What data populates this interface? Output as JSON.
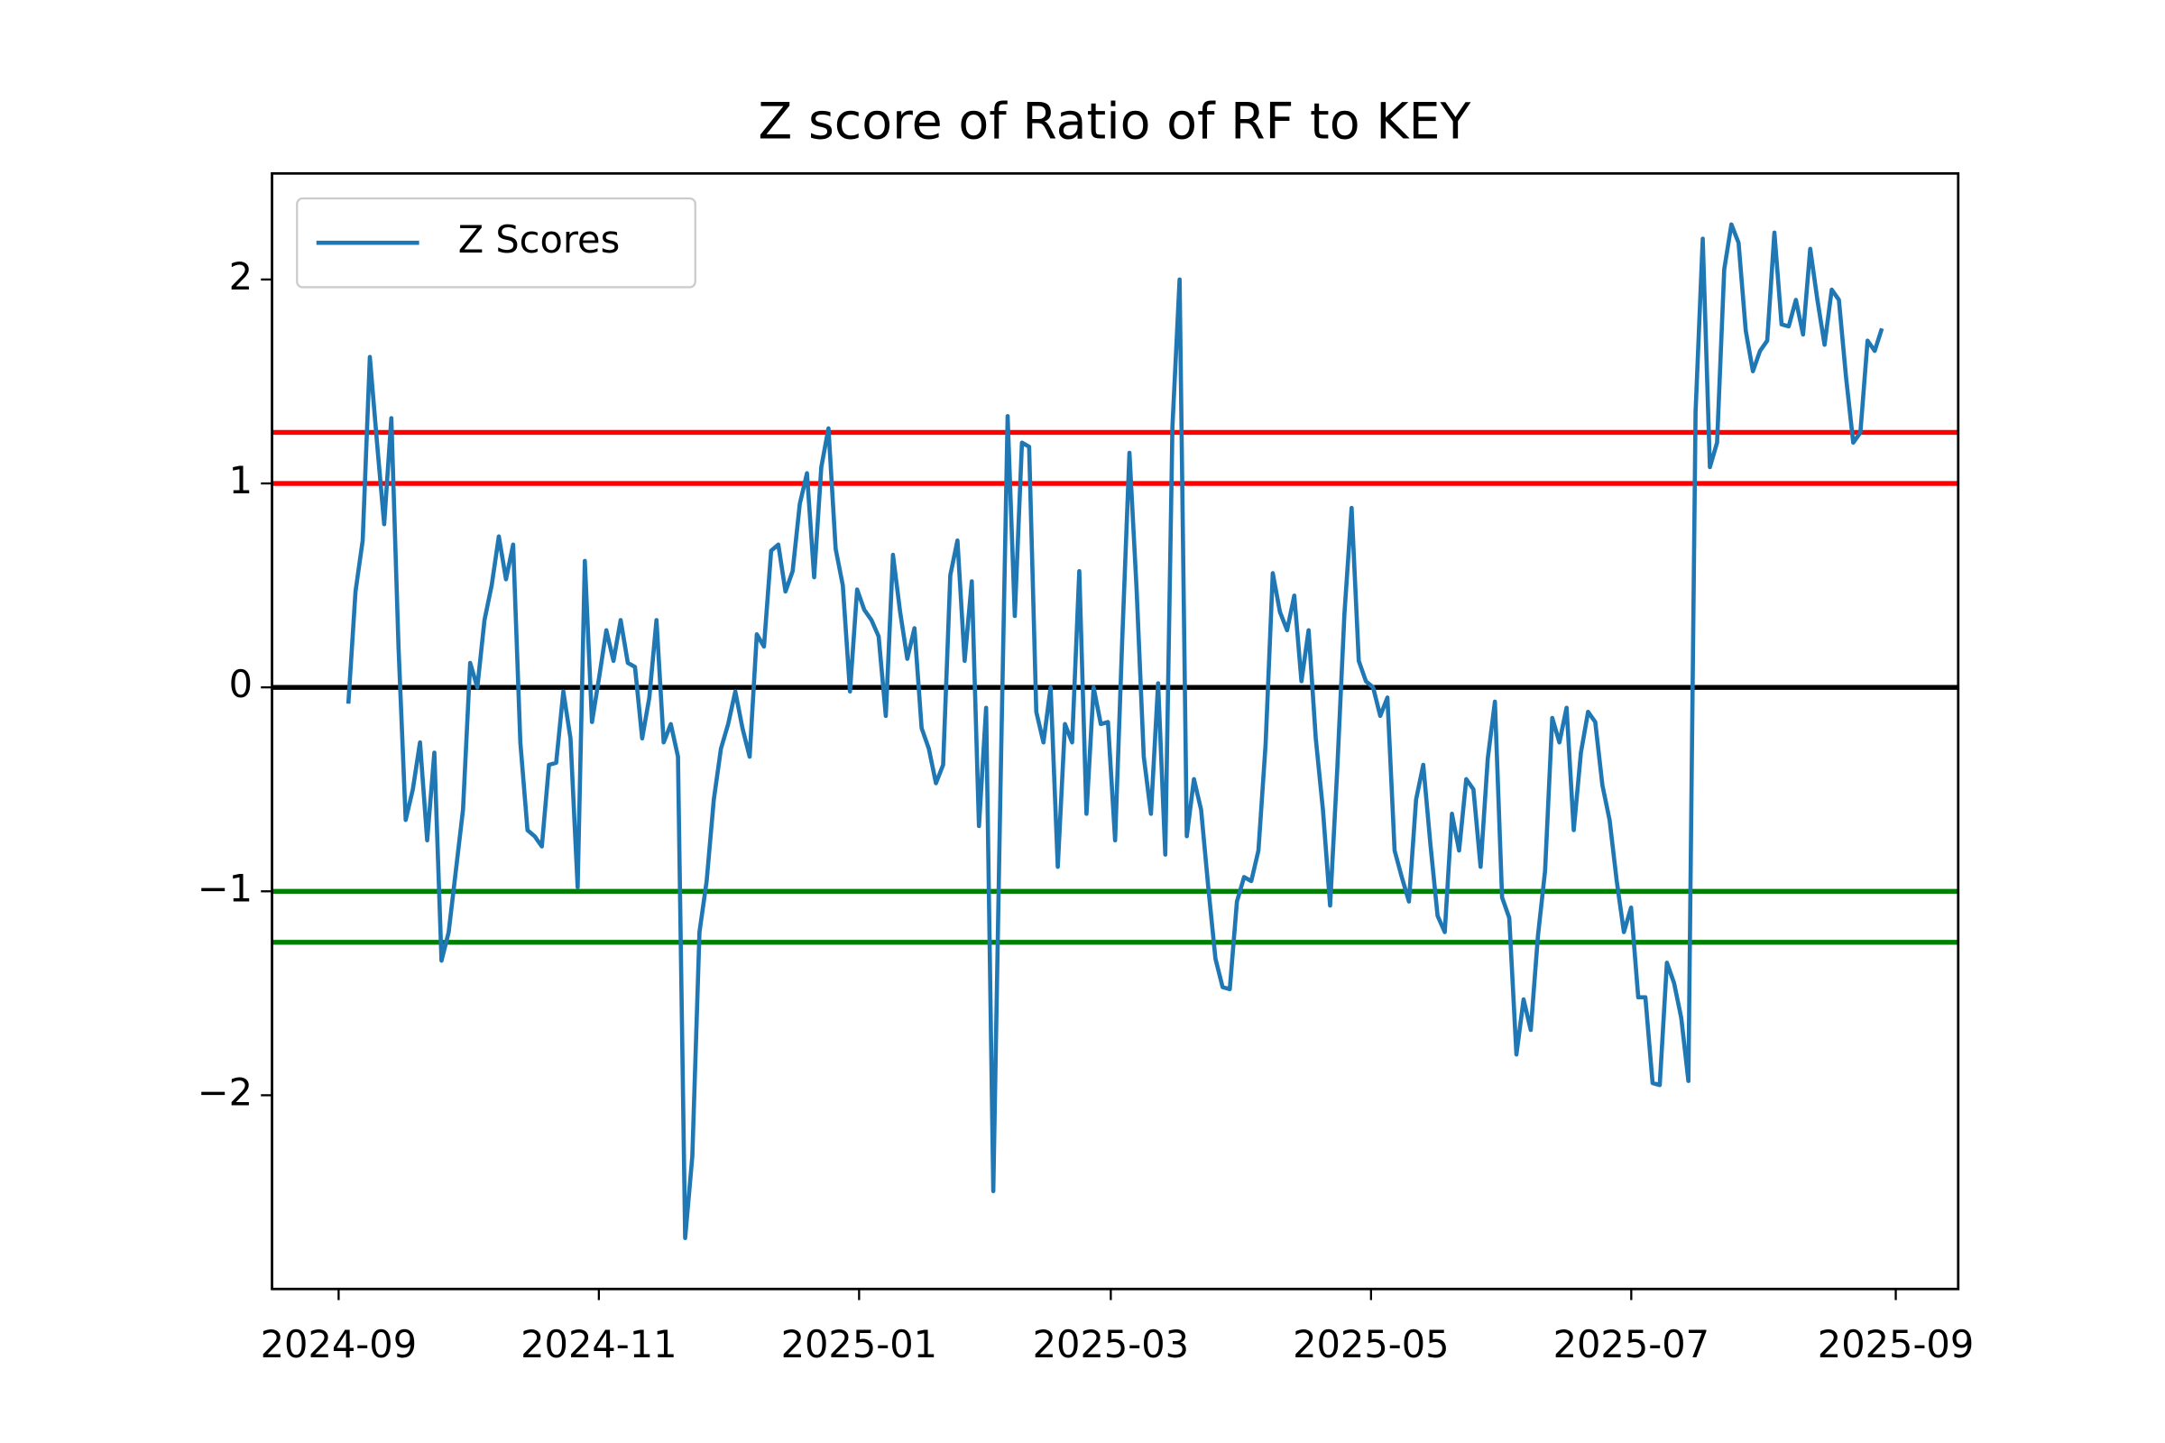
{
  "chart_data": {
    "type": "line",
    "title": "Z score of Ratio of RF to KEY",
    "xticks": [
      "2024-09",
      "2024-11",
      "2025-01",
      "2025-03",
      "2025-05",
      "2025-07",
      "2025-09"
    ],
    "ylim": [
      -2.95,
      2.52
    ],
    "yticks": [
      {
        "value": -2,
        "label": "−2"
      },
      {
        "value": -1,
        "label": "−1"
      },
      0,
      1,
      2
    ],
    "legend": "upper left",
    "hlines": [
      {
        "value": 1.25,
        "color": "#ff0000"
      },
      {
        "value": 1,
        "color": "#ff0000"
      },
      {
        "value": 0,
        "color": "#000000"
      },
      {
        "value": -1,
        "color": "#008000"
      },
      {
        "value": -1.25,
        "color": "#008000"
      }
    ],
    "series": [
      {
        "name": "Z Scores",
        "color": "#1f77b4",
        "values": [
          -0.08,
          0.47,
          0.72,
          1.62,
          1.2,
          0.8,
          1.32,
          0.2,
          -0.65,
          -0.5,
          -0.27,
          -0.75,
          -0.32,
          -1.34,
          -1.2,
          -0.9,
          -0.6,
          0.12,
          0.0,
          0.33,
          0.5,
          0.74,
          0.53,
          0.7,
          -0.27,
          -0.7,
          -0.73,
          -0.78,
          -0.38,
          -0.37,
          -0.02,
          -0.25,
          -0.98,
          0.62,
          -0.17,
          0.05,
          0.28,
          0.13,
          0.33,
          0.12,
          0.1,
          -0.25,
          -0.05,
          0.33,
          -0.27,
          -0.18,
          -0.34,
          -2.7,
          -2.3,
          -1.2,
          -0.95,
          -0.55,
          -0.3,
          -0.18,
          -0.02,
          -0.2,
          -0.34,
          0.26,
          0.2,
          0.67,
          0.7,
          0.47,
          0.57,
          0.9,
          1.05,
          0.54,
          1.08,
          1.27,
          0.68,
          0.5,
          -0.02,
          0.48,
          0.38,
          0.33,
          0.25,
          -0.14,
          0.65,
          0.37,
          0.14,
          0.29,
          -0.2,
          -0.3,
          -0.47,
          -0.38,
          0.55,
          0.72,
          0.13,
          0.52,
          -0.68,
          -0.1,
          -2.47,
          -0.5,
          1.33,
          0.35,
          1.2,
          1.18,
          -0.12,
          -0.27,
          0.0,
          -0.88,
          -0.18,
          -0.27,
          0.57,
          -0.62,
          0.0,
          -0.18,
          -0.17,
          -0.75,
          0.24,
          1.15,
          0.48,
          -0.34,
          -0.62,
          0.02,
          -0.82,
          1.28,
          2.0,
          -0.73,
          -0.45,
          -0.6,
          -0.98,
          -1.33,
          -1.47,
          -1.48,
          -1.05,
          -0.93,
          -0.95,
          -0.8,
          -0.28,
          0.56,
          0.37,
          0.28,
          0.45,
          0.03,
          0.28,
          -0.25,
          -0.6,
          -1.07,
          -0.4,
          0.36,
          0.88,
          0.13,
          0.03,
          0.0,
          -0.14,
          -0.05,
          -0.8,
          -0.93,
          -1.05,
          -0.55,
          -0.38,
          -0.77,
          -1.12,
          -1.2,
          -0.62,
          -0.8,
          -0.45,
          -0.5,
          -0.88,
          -0.35,
          -0.07,
          -1.03,
          -1.13,
          -1.8,
          -1.53,
          -1.68,
          -1.22,
          -0.9,
          -0.15,
          -0.27,
          -0.1,
          -0.7,
          -0.32,
          -0.12,
          -0.17,
          -0.48,
          -0.65,
          -0.95,
          -1.2,
          -1.08,
          -1.52,
          -1.52,
          -1.94,
          -1.95,
          -1.35,
          -1.45,
          -1.62,
          -1.93,
          1.35,
          2.2,
          1.08,
          1.2,
          2.05,
          2.27,
          2.18,
          1.75,
          1.55,
          1.65,
          1.7,
          2.23,
          1.78,
          1.77,
          1.9,
          1.73,
          2.15,
          1.9,
          1.68,
          1.95,
          1.9,
          1.52,
          1.2,
          1.25,
          1.7,
          1.65,
          1.76
        ]
      }
    ]
  }
}
